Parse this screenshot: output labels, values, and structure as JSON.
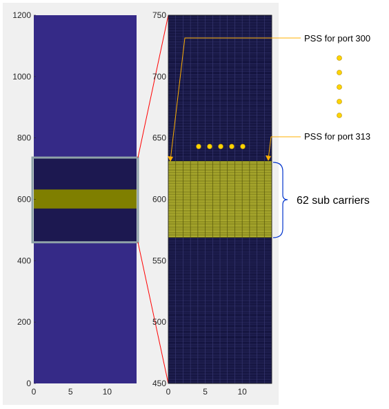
{
  "colors": {
    "figure_bg": "#f0f0f0",
    "band_low": "#352a87",
    "band_empty": "#1c1850",
    "band_pss": "#7f7f00",
    "pss_grid_fill": "#c8c83a",
    "pss_grid_line": "#55550a",
    "zoom_box": "#8fa3a8",
    "zoom_line": "#ff0000",
    "arrow": "#ffb000",
    "bracket": "#0033cc",
    "dot": "#ffd400"
  },
  "chart_data": [
    {
      "type": "heatmap",
      "x_ticks": [
        "0",
        "5",
        "10"
      ],
      "y_ticks": [
        "0",
        "200",
        "400",
        "600",
        "800",
        "1000",
        "1200"
      ],
      "xlim": [
        0,
        14
      ],
      "ylim": [
        0,
        1200
      ],
      "zoom_range": [
        460,
        736
      ],
      "pss_range": [
        570,
        632
      ]
    },
    {
      "type": "heatmap",
      "x_ticks": [
        "0",
        "5",
        "10"
      ],
      "y_ticks": [
        "450",
        "500",
        "550",
        "600",
        "650",
        "700",
        "750"
      ],
      "xlim": [
        0,
        14
      ],
      "ylim": [
        450,
        750
      ],
      "pss_range": [
        569,
        631
      ]
    }
  ],
  "annotations": {
    "pss_port_300": "PSS for port 300",
    "pss_port_313": "PSS for port 313",
    "sub_carriers": "62 sub carriers"
  }
}
